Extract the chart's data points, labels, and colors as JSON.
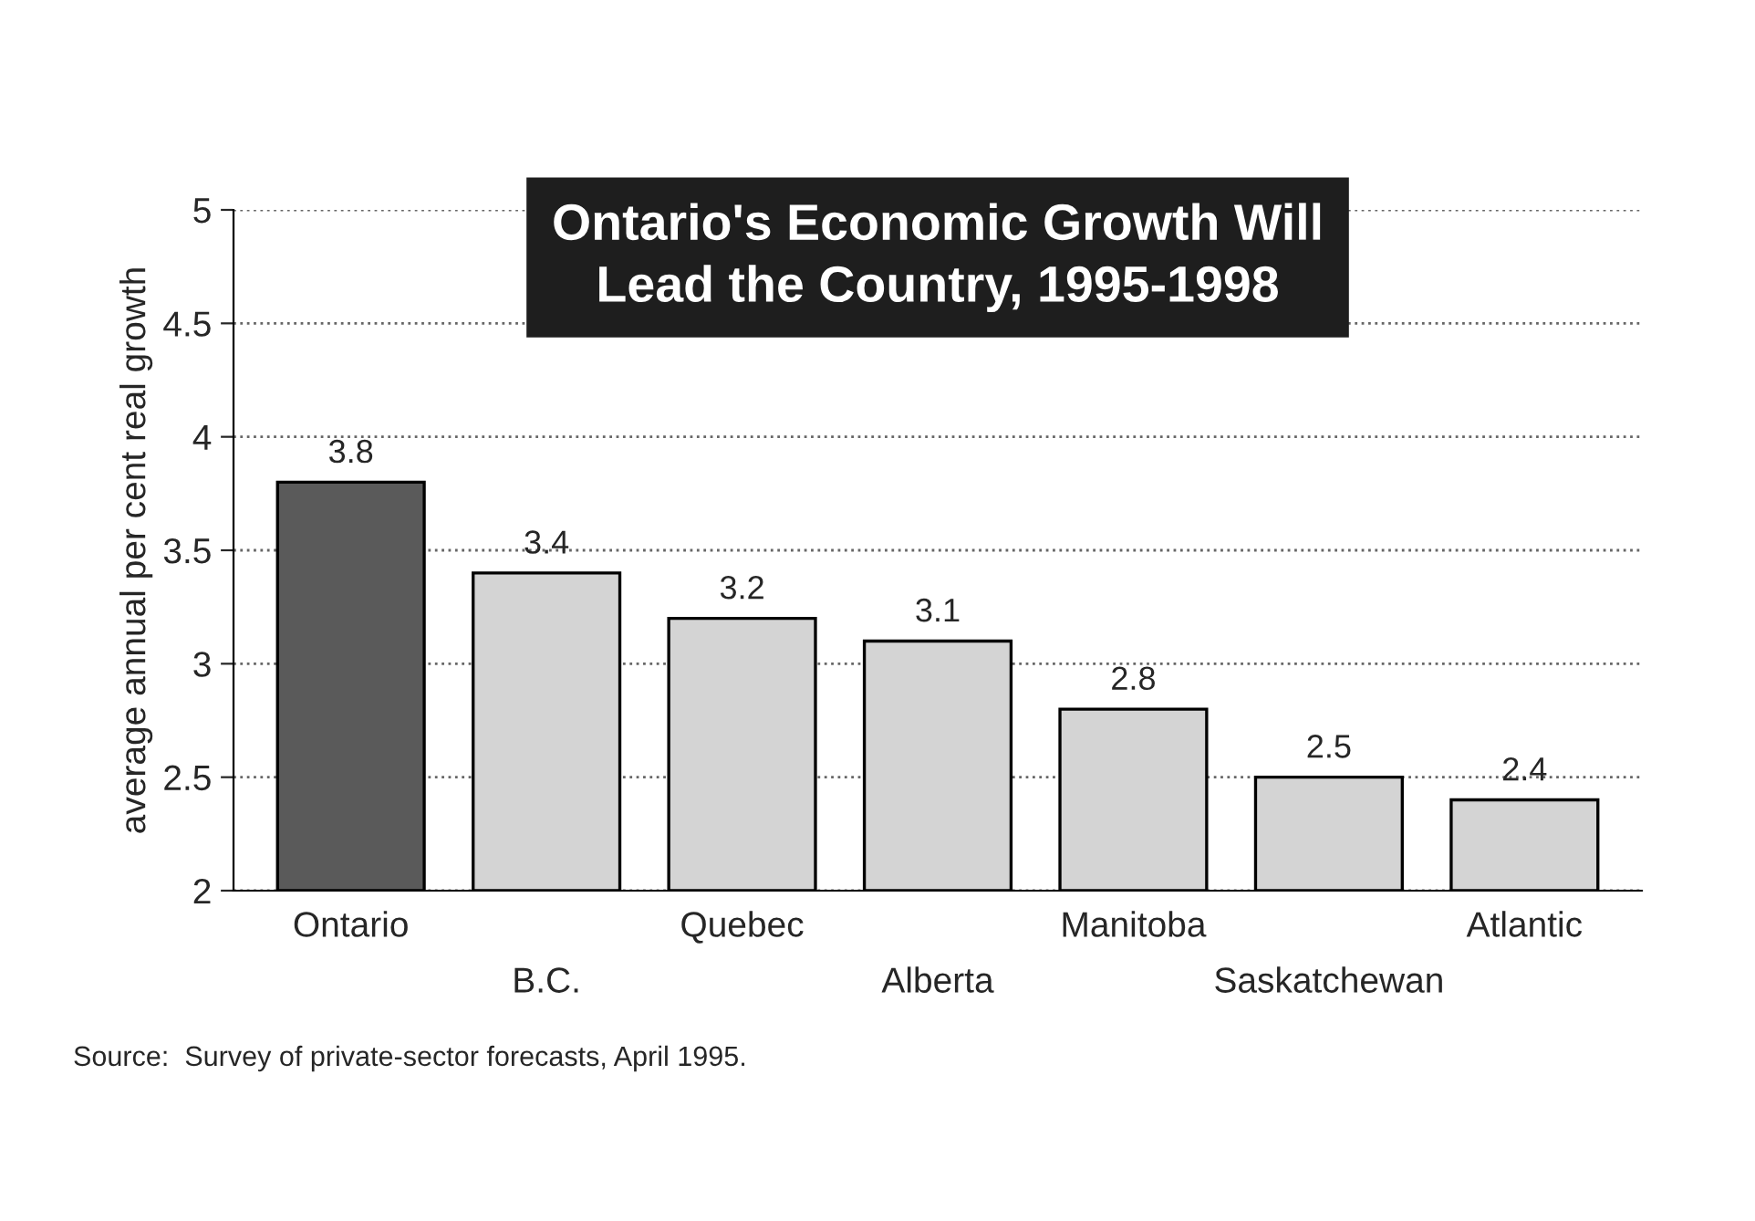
{
  "chart_data": {
    "type": "bar",
    "title": "Ontario's Economic Growth Will\nLead the Country, 1995-1998",
    "ylabel": "average annual per cent real growth",
    "categories": [
      "Ontario",
      "B.C.",
      "Quebec",
      "Alberta",
      "Manitoba",
      "Saskatchewan",
      "Atlantic"
    ],
    "values": [
      3.8,
      3.4,
      3.2,
      3.1,
      2.8,
      2.5,
      2.4
    ],
    "colors": [
      "#5a5a5a",
      "#d4d4d4",
      "#d4d4d4",
      "#d4d4d4",
      "#d4d4d4",
      "#d4d4d4",
      "#d4d4d4"
    ],
    "ylim": [
      2,
      5
    ],
    "yticks": [
      2,
      2.5,
      3,
      3.5,
      4,
      4.5,
      5
    ],
    "grid": "y",
    "data_labels": true,
    "annotations": [
      "Source:  Survey of private-sector forecasts, April 1995."
    ]
  }
}
